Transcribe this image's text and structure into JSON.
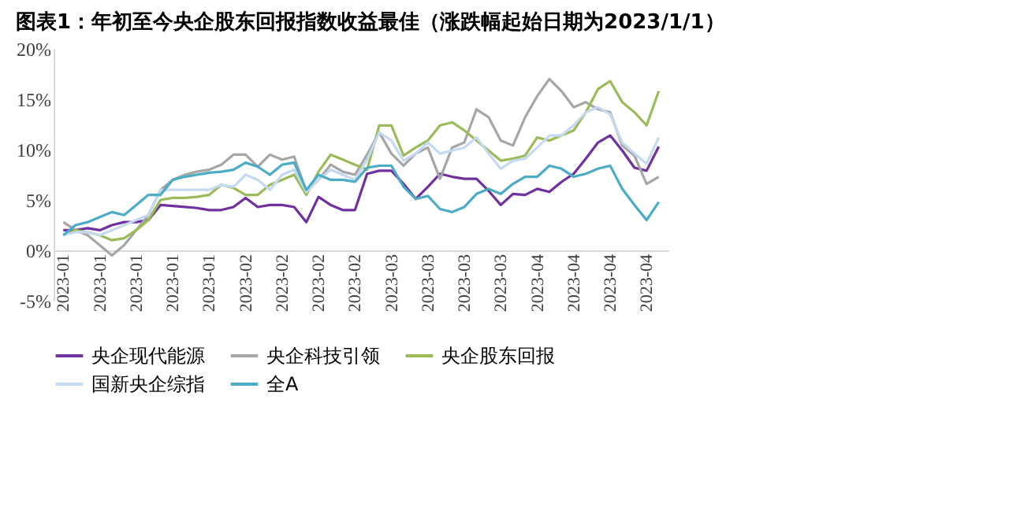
{
  "chart_data": {
    "type": "line",
    "title": "图表1：年初至今央企股东回报指数收益最佳（涨跌幅起始日期为2023/1/1）",
    "categories": [
      "2023-01",
      null,
      null,
      "2023-01",
      null,
      null,
      "2023-01",
      null,
      null,
      "2023-01",
      null,
      null,
      "2023-01",
      null,
      null,
      "2023-02",
      null,
      null,
      "2023-02",
      null,
      null,
      "2023-02",
      null,
      null,
      "2023-02",
      null,
      null,
      "2023-03",
      null,
      null,
      "2023-03",
      null,
      null,
      "2023-03",
      null,
      null,
      "2023-03",
      null,
      null,
      "2023-04",
      null,
      null,
      "2023-04",
      null,
      null,
      "2023-04",
      null,
      null,
      "2023-04",
      null
    ],
    "series": [
      {
        "name": "央企现代能源",
        "color": "#7030a0",
        "values": [
          2.0,
          2.0,
          2.2,
          2.0,
          2.5,
          2.8,
          2.8,
          3.0,
          4.5,
          4.4,
          4.3,
          4.2,
          4.0,
          4.0,
          4.3,
          5.2,
          4.3,
          4.5,
          4.5,
          4.3,
          2.8,
          5.3,
          4.5,
          4.0,
          4.0,
          7.6,
          7.9,
          7.9,
          6.6,
          5.1,
          6.3,
          7.6,
          7.3,
          7.1,
          7.1,
          5.9,
          4.5,
          5.6,
          5.5,
          6.1,
          5.8,
          6.8,
          7.6,
          9.1,
          10.7,
          11.4,
          9.9,
          8.2,
          7.9,
          10.3
        ]
      },
      {
        "name": "央企科技引领",
        "color": "#a6a6a6",
        "values": [
          2.8,
          2.0,
          1.5,
          0.5,
          -0.5,
          0.5,
          2.0,
          3.5,
          6.0,
          7.0,
          7.5,
          7.8,
          8.0,
          8.5,
          9.5,
          9.5,
          8.3,
          9.5,
          9.0,
          9.3,
          5.8,
          7.0,
          8.5,
          7.8,
          7.5,
          9.5,
          11.7,
          9.6,
          8.4,
          9.6,
          10.2,
          7.1,
          10.2,
          10.7,
          14.0,
          13.2,
          10.9,
          10.4,
          13.2,
          15.3,
          17.0,
          15.8,
          14.2,
          14.7,
          14.0,
          13.7,
          10.4,
          9.4,
          6.6,
          7.3
        ]
      },
      {
        "name": "央企股东回报",
        "color": "#9bbb59",
        "values": [
          1.5,
          2.0,
          1.8,
          1.5,
          1.0,
          1.2,
          2.0,
          3.0,
          5.0,
          5.2,
          5.2,
          5.3,
          5.5,
          6.5,
          6.2,
          5.5,
          5.5,
          6.5,
          7.0,
          7.5,
          5.5,
          7.8,
          9.5,
          9.0,
          8.5,
          8.0,
          12.4,
          12.4,
          9.4,
          10.2,
          10.9,
          12.4,
          12.7,
          11.9,
          10.9,
          9.9,
          8.9,
          9.1,
          9.4,
          11.2,
          10.9,
          11.4,
          11.9,
          13.7,
          16.0,
          16.8,
          14.7,
          13.7,
          12.4,
          15.8
        ]
      },
      {
        "name": "国新央企综指",
        "color": "#c5d9f1",
        "values": [
          1.5,
          1.8,
          1.8,
          1.5,
          2.0,
          2.5,
          3.0,
          3.5,
          6.0,
          6.0,
          6.0,
          6.0,
          6.0,
          6.5,
          6.3,
          7.5,
          7.0,
          6.0,
          7.5,
          8.0,
          5.8,
          7.0,
          8.0,
          7.5,
          7.0,
          9.0,
          11.7,
          10.9,
          8.9,
          9.6,
          10.7,
          9.6,
          9.9,
          10.2,
          11.2,
          9.6,
          8.1,
          8.9,
          9.1,
          10.2,
          11.4,
          11.4,
          12.4,
          13.7,
          14.2,
          13.5,
          10.7,
          9.6,
          8.6,
          11.2
        ]
      },
      {
        "name": "全A",
        "color": "#4bacc6",
        "values": [
          1.5,
          2.5,
          2.8,
          3.3,
          3.8,
          3.5,
          4.5,
          5.5,
          5.5,
          7.0,
          7.3,
          7.5,
          7.7,
          7.8,
          8.0,
          8.7,
          8.3,
          7.5,
          8.5,
          8.7,
          6.0,
          7.5,
          7.0,
          7.0,
          6.8,
          8.2,
          8.4,
          8.4,
          6.3,
          5.1,
          5.4,
          4.1,
          3.8,
          4.3,
          5.6,
          6.1,
          5.6,
          6.6,
          7.3,
          7.3,
          8.4,
          8.1,
          7.3,
          7.6,
          8.1,
          8.4,
          6.1,
          4.5,
          3.0,
          4.8
        ]
      }
    ],
    "ylim": [
      -5,
      20
    ],
    "yticks": [
      {
        "value": -5,
        "label": "-5%"
      },
      {
        "value": 0,
        "label": "0%"
      },
      {
        "value": 5,
        "label": "5%"
      },
      {
        "value": 10,
        "label": "10%"
      },
      {
        "value": 15,
        "label": "15%"
      },
      {
        "value": 20,
        "label": "20%"
      }
    ],
    "grid": false,
    "legend": "bottom",
    "line_style": "solid",
    "marker": "none"
  }
}
